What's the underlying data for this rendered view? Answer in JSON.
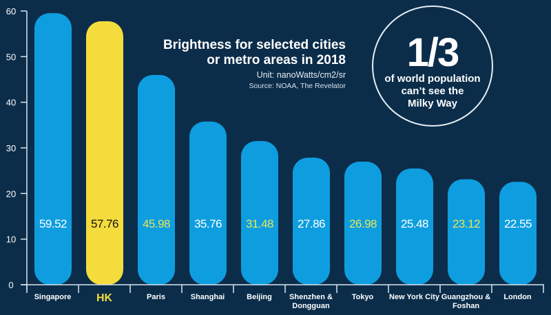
{
  "chart_data": {
    "type": "bar",
    "title": "Brightness for selected cities or metro areas in 2018",
    "title_lines": [
      "Brightness for selected cities",
      "or metro areas in 2018"
    ],
    "unit": "Unit: nanoWatts/cm2/sr",
    "source": "Source: NOAA, The Revelator",
    "xlabel": "",
    "ylabel": "",
    "ylim": [
      0,
      60
    ],
    "yticks": [
      0,
      10,
      20,
      30,
      40,
      50,
      60
    ],
    "grid": false,
    "categories": [
      [
        "Singapore"
      ],
      [
        "HK"
      ],
      [
        "Paris"
      ],
      [
        "Shanghai"
      ],
      [
        "Beijing"
      ],
      [
        "Shenzhen &",
        "Dongguan"
      ],
      [
        "Tokyo"
      ],
      [
        "New York City"
      ],
      [
        "Guangzhou &",
        "Foshan"
      ],
      [
        "London"
      ]
    ],
    "values": [
      59.52,
      57.76,
      45.98,
      35.76,
      31.48,
      27.86,
      26.98,
      25.48,
      23.12,
      22.55
    ],
    "value_labels": [
      "59.52",
      "57.76",
      "45.98",
      "35.76",
      "31.48",
      "27.86",
      "26.98",
      "25.48",
      "23.12",
      "22.55"
    ],
    "highlight_index": 1,
    "value_label_colors": [
      "#ffffff",
      "#111111",
      "#e8e45a",
      "#ffffff",
      "#e8e45a",
      "#ffffff",
      "#e8e45a",
      "#ffffff",
      "#e8e45a",
      "#ffffff"
    ],
    "colors": {
      "background": "#0b2d4a",
      "bar": "#0e9ee0",
      "highlight_bar": "#f4dc3c",
      "axis": "#dce6ef",
      "text": "#ffffff",
      "highlight_text": "#f4dc3c"
    }
  },
  "callout": {
    "big": "1/3",
    "lines": [
      "of world population",
      "can’t see the",
      "Milky Way"
    ]
  }
}
